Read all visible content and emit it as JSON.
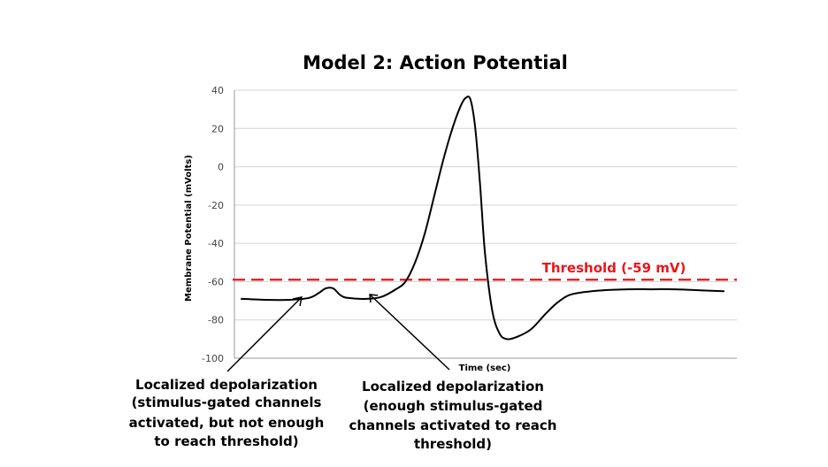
{
  "chart_data": {
    "type": "line",
    "title": "Model 2: Action Potential",
    "xlabel": "Time (sec)",
    "ylabel": "Membrane Potential (mVolts)",
    "ylim": [
      -100,
      40
    ],
    "yticks": [
      "40",
      "20",
      "0",
      "-20",
      "-40",
      "-60",
      "-80",
      "-100"
    ],
    "grid": "horizontal",
    "series": [
      {
        "points": [
          [
            0,
            -69
          ],
          [
            5,
            -69.5
          ],
          [
            10,
            -69.5
          ],
          [
            14,
            -68.5
          ],
          [
            16,
            -66
          ],
          [
            17.5,
            -63.5
          ],
          [
            19,
            -63.5
          ],
          [
            20.5,
            -67
          ],
          [
            22,
            -68.5
          ],
          [
            26,
            -69
          ],
          [
            29,
            -68
          ],
          [
            32,
            -64
          ],
          [
            34,
            -60
          ],
          [
            36,
            -50
          ],
          [
            38,
            -35
          ],
          [
            40,
            -15
          ],
          [
            42,
            5
          ],
          [
            44,
            22
          ],
          [
            45.5,
            32
          ],
          [
            46.5,
            36
          ],
          [
            47.5,
            35
          ],
          [
            48.5,
            20
          ],
          [
            49.5,
            -10
          ],
          [
            50.5,
            -45
          ],
          [
            52,
            -75
          ],
          [
            53.5,
            -87
          ],
          [
            55,
            -90
          ],
          [
            57,
            -89
          ],
          [
            60,
            -85
          ],
          [
            63,
            -77
          ],
          [
            65.5,
            -71
          ],
          [
            68,
            -67
          ],
          [
            71,
            -65.5
          ],
          [
            75,
            -64.5
          ],
          [
            80,
            -64
          ],
          [
            85,
            -64
          ],
          [
            90,
            -64
          ],
          [
            95,
            -64.5
          ],
          [
            100,
            -65
          ]
        ],
        "color": "#000000"
      }
    ],
    "threshold": {
      "value": -59,
      "label": "Threshold (-59 mV)",
      "color": "#e8161c"
    },
    "annotations": [
      {
        "lines": [
          "Localized depolarization",
          "(stimulus-gated channels",
          "activated, but not enough",
          "to reach threshold)"
        ]
      },
      {
        "lines": [
          "Localized depolarization",
          "(enough stimulus-gated",
          "channels activated to reach",
          "threshold)"
        ]
      }
    ]
  }
}
